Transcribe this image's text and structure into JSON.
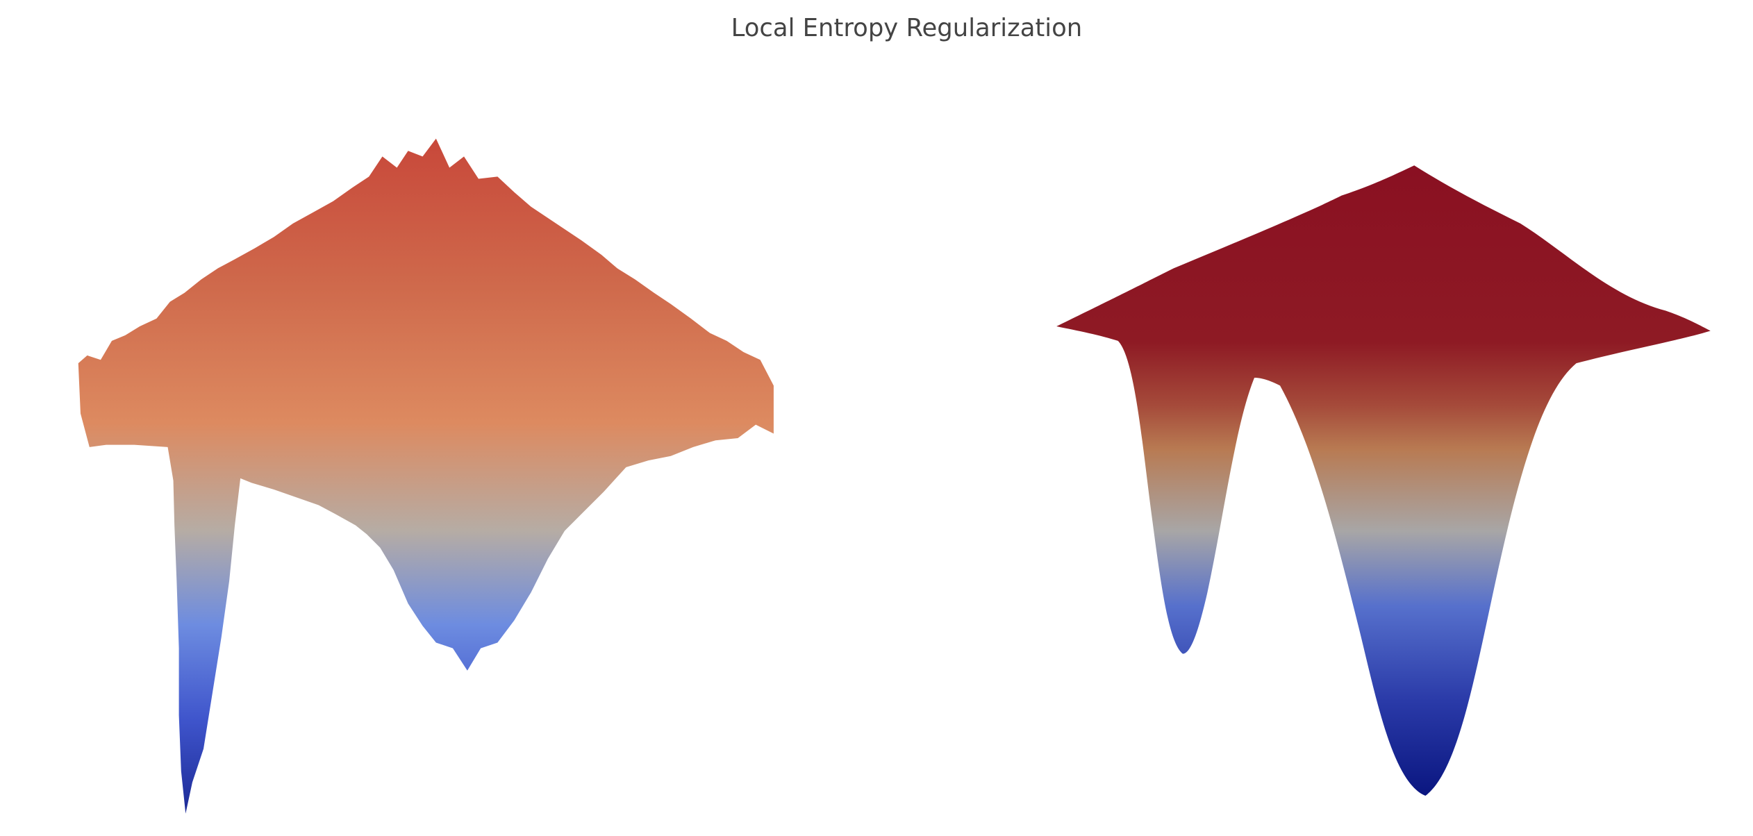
{
  "chart_data": {
    "type": "surface",
    "title": "Local Entropy Regularization"
  }
}
